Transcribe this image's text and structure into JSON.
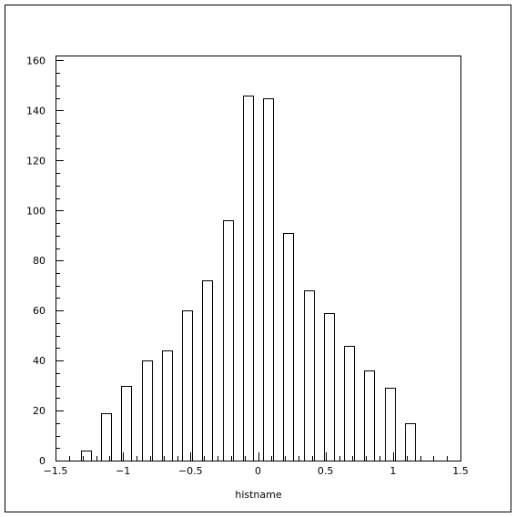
{
  "chart_data": {
    "type": "bar",
    "title": "",
    "xlabel": "histname",
    "ylabel": "",
    "xlim": [
      -1.5,
      1.5
    ],
    "ylim": [
      0,
      162
    ],
    "x_ticks": [
      -1.5,
      -1,
      -0.5,
      0,
      0.5,
      1,
      1.5
    ],
    "x_tick_labels": [
      "−1.5",
      "−1",
      "−0.5",
      "0",
      "0.5",
      "1",
      "1.5"
    ],
    "y_ticks": [
      0,
      20,
      40,
      60,
      80,
      100,
      120,
      140,
      160
    ],
    "y_tick_labels": [
      "0",
      "20",
      "40",
      "60",
      "80",
      "100",
      "120",
      "140",
      "160"
    ],
    "categories": [
      -1.275,
      -1.125,
      -0.975,
      -0.825,
      -0.675,
      -0.525,
      -0.375,
      -0.225,
      -0.075,
      0.075,
      0.225,
      0.375,
      0.525,
      0.675,
      0.825,
      0.975,
      1.125
    ],
    "values": [
      4,
      19,
      30,
      40,
      44,
      60,
      72,
      96,
      146,
      145,
      91,
      68,
      59,
      46,
      36,
      29,
      15
    ],
    "bar_width": 0.075,
    "grid": false,
    "legend": "none",
    "colors": {
      "bar_fill": "#ffffff",
      "bar_stroke": "#000000",
      "axis": "#000000",
      "background": "#ffffff"
    }
  }
}
